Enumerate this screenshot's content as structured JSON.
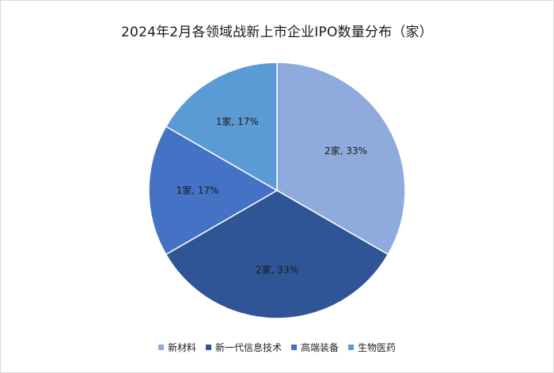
{
  "chart_data": {
    "type": "pie",
    "title": "2024年2月各领域战新上市企业IPO数量分布（家）",
    "slices": [
      {
        "name": "新材料",
        "value": 2,
        "label": "2家, 33%",
        "color": "#8faadc"
      },
      {
        "name": "新一代信息技术",
        "value": 2,
        "label": "2家, 33%",
        "color": "#2f5597"
      },
      {
        "name": "高端装备",
        "value": 1,
        "label": "1家, 17%",
        "color": "#4472c4"
      },
      {
        "name": "生物医药",
        "value": 1,
        "label": "1家, 17%",
        "color": "#5b9bd5"
      }
    ],
    "legend_position": "bottom"
  }
}
